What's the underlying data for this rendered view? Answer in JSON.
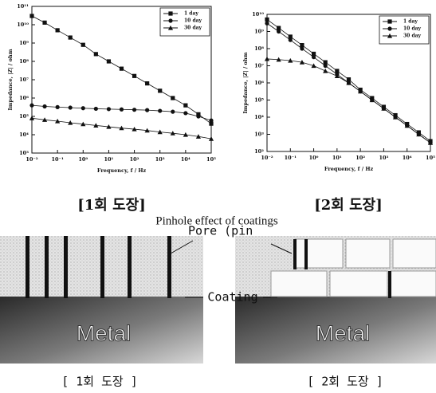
{
  "chart_data": [
    {
      "type": "line",
      "xlabel": "Frequency, f / Hz",
      "ylabel": "Impedance, |Z| / ohm",
      "log_x": true,
      "log_y": true,
      "legend": "upper right",
      "x": [
        0.01,
        0.0316,
        0.1,
        0.316,
        1,
        3.16,
        10,
        31.6,
        100,
        316,
        1000,
        3162,
        10000,
        31623,
        100000
      ],
      "series": [
        {
          "name": "1 day",
          "color": "#111111",
          "marker": "square",
          "values": [
            30000000000,
            13000000000,
            5000000000,
            2000000000,
            800000000,
            250000000,
            100000000,
            40000000,
            16000000,
            6300000,
            2500000,
            1000000,
            400000,
            130000,
            40000
          ]
        },
        {
          "name": "10 day",
          "color": "#111111",
          "marker": "circle",
          "values": [
            400000,
            350000,
            320000,
            300000,
            280000,
            260000,
            250000,
            240000,
            230000,
            220000,
            200000,
            180000,
            150000,
            100000,
            60000
          ]
        },
        {
          "name": "30 day",
          "color": "#111111",
          "marker": "triangle",
          "values": [
            80000,
            65000,
            55000,
            45000,
            38000,
            32000,
            27000,
            23000,
            20000,
            17000,
            14000,
            12000,
            10000,
            8000,
            6000
          ]
        }
      ],
      "xlim": [
        0.01,
        100000
      ],
      "xticks": [
        {
          "value": 0.01,
          "label": "10⁻²"
        },
        {
          "value": 0.1,
          "label": "10⁻¹"
        },
        {
          "value": 1,
          "label": "10⁰"
        },
        {
          "value": 10,
          "label": "10¹"
        },
        {
          "value": 100,
          "label": "10²"
        },
        {
          "value": 1000,
          "label": "10³"
        },
        {
          "value": 10000,
          "label": "10⁴"
        },
        {
          "value": 100000,
          "label": "10⁵"
        }
      ],
      "ylim": [
        1000,
        100000000000
      ],
      "yticks": [
        {
          "value": 1000,
          "label": "10³"
        },
        {
          "value": 10000,
          "label": "10⁴"
        },
        {
          "value": 100000,
          "label": "10⁵"
        },
        {
          "value": 1000000,
          "label": "10⁶"
        },
        {
          "value": 10000000,
          "label": "10⁷"
        },
        {
          "value": 100000000,
          "label": "10⁸"
        },
        {
          "value": 1000000000,
          "label": "10⁹"
        },
        {
          "value": 10000000000,
          "label": "10¹⁰"
        },
        {
          "value": 100000000000,
          "label": "10¹¹"
        }
      ]
    },
    {
      "type": "line",
      "xlabel": "Frequency, f / Hz",
      "ylabel": "Impedance, |Z| / ohm",
      "log_x": true,
      "log_y": true,
      "legend": "upper right",
      "x": [
        0.01,
        0.0316,
        0.1,
        0.316,
        1,
        3.16,
        10,
        31.6,
        100,
        316,
        1000,
        3162,
        10000,
        31623,
        100000
      ],
      "series": [
        {
          "name": "1 day",
          "color": "#111111",
          "marker": "square",
          "values": [
            5000000000,
            1600000000,
            500000000,
            160000000,
            50000000,
            16000000,
            5000000,
            1600000,
            400000,
            130000,
            40000,
            13000,
            4000,
            1300,
            400
          ]
        },
        {
          "name": "10 day",
          "color": "#111111",
          "marker": "circle",
          "values": [
            3000000000,
            1000000000,
            320000000,
            100000000,
            32000000,
            10000000,
            3200000,
            1000000,
            320000,
            100000,
            32000,
            10000,
            3200,
            1000,
            320
          ]
        },
        {
          "name": "30 day",
          "color": "#111111",
          "marker": "triangle",
          "values": [
            25000000,
            23000000,
            20000000,
            16000000,
            10000000,
            5000000,
            2500000,
            1000000,
            320000,
            100000,
            32000,
            10000,
            3200,
            1000,
            320
          ]
        }
      ],
      "xlim": [
        0.01,
        100000
      ],
      "xticks": [
        {
          "value": 0.01,
          "label": "10⁻²"
        },
        {
          "value": 0.1,
          "label": "10⁻¹"
        },
        {
          "value": 1,
          "label": "10⁰"
        },
        {
          "value": 10,
          "label": "10¹"
        },
        {
          "value": 100,
          "label": "10²"
        },
        {
          "value": 1000,
          "label": "10³"
        },
        {
          "value": 10000,
          "label": "10⁴"
        },
        {
          "value": 100000,
          "label": "10⁵"
        }
      ],
      "ylim": [
        100,
        10000000000
      ],
      "yticks": [
        {
          "value": 100,
          "label": "10²"
        },
        {
          "value": 1000,
          "label": "10³"
        },
        {
          "value": 10000,
          "label": "10⁴"
        },
        {
          "value": 100000,
          "label": "10⁵"
        },
        {
          "value": 1000000,
          "label": "10⁶"
        },
        {
          "value": 10000000,
          "label": "10⁷"
        },
        {
          "value": 100000000,
          "label": "10⁸"
        },
        {
          "value": 1000000000,
          "label": "10⁹"
        },
        {
          "value": 10000000000,
          "label": "10¹⁰"
        }
      ]
    }
  ],
  "captions": [
    "[1회 도장]",
    "[2회 도장]"
  ],
  "subtitle": "Pinhole effect of coatings",
  "diagram": {
    "pore_label": "Pore (pin",
    "coating_label": "Coating",
    "panels": [
      {
        "metal": "Metal",
        "caption": "[ 1회 도장 ]"
      },
      {
        "metal": "Metal",
        "caption": "[ 2회 도장 ]"
      }
    ]
  }
}
